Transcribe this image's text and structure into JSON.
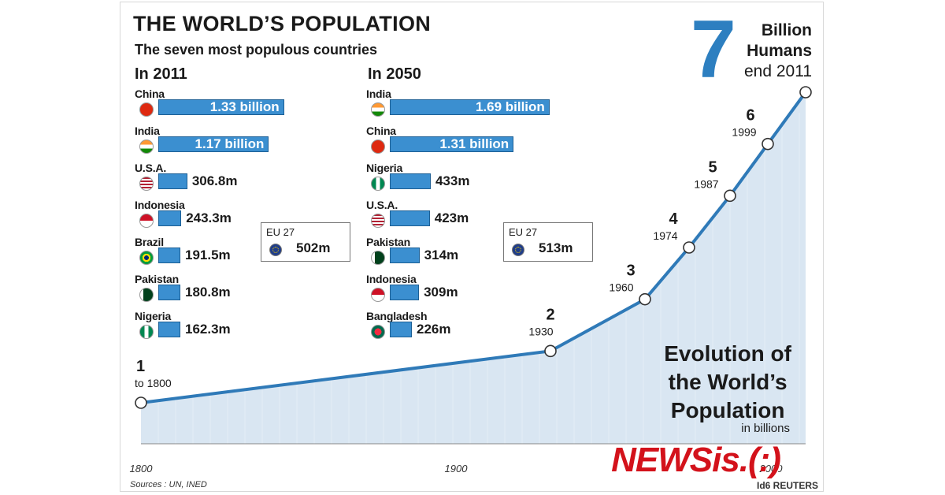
{
  "title": "THE WORLD’S POPULATION",
  "subtitle": "The seven most populous countries",
  "col2011": {
    "heading": "In 2011",
    "rows": [
      {
        "name": "China",
        "value_label": "1.33 billion",
        "value_m": 1330,
        "flag": "china-flag"
      },
      {
        "name": "India",
        "value_label": "1.17 billion",
        "value_m": 1170,
        "flag": "india-flag"
      },
      {
        "name": "U.S.A.",
        "value_label": "306.8m",
        "value_m": 306.8,
        "flag": "usa-flag"
      },
      {
        "name": "Indonesia",
        "value_label": "243.3m",
        "value_m": 243.3,
        "flag": "indonesia-flag"
      },
      {
        "name": "Brazil",
        "value_label": "191.5m",
        "value_m": 191.5,
        "flag": "brazil-flag"
      },
      {
        "name": "Pakistan",
        "value_label": "180.8m",
        "value_m": 180.8,
        "flag": "pakistan-flag"
      },
      {
        "name": "Nigeria",
        "value_label": "162.3m",
        "value_m": 162.3,
        "flag": "nigeria-flag"
      }
    ],
    "eu": {
      "label": "EU 27",
      "value": "502m"
    }
  },
  "col2050": {
    "heading": "In 2050",
    "rows": [
      {
        "name": "India",
        "value_label": "1.69 billion",
        "value_m": 1690,
        "flag": "india-flag"
      },
      {
        "name": "China",
        "value_label": "1.31 billion",
        "value_m": 1310,
        "flag": "china-flag"
      },
      {
        "name": "Nigeria",
        "value_label": "433m",
        "value_m": 433,
        "flag": "nigeria-flag"
      },
      {
        "name": "U.S.A.",
        "value_label": "423m",
        "value_m": 423,
        "flag": "usa-flag"
      },
      {
        "name": "Pakistan",
        "value_label": "314m",
        "value_m": 314,
        "flag": "pakistan-flag"
      },
      {
        "name": "Indonesia",
        "value_label": "309m",
        "value_m": 309,
        "flag": "indonesia-flag"
      },
      {
        "name": "Bangladesh",
        "value_label": "226m",
        "value_m": 226,
        "flag": "bangladesh-flag"
      }
    ],
    "eu": {
      "label": "EU 27",
      "value": "513m"
    }
  },
  "seven": {
    "number": "7",
    "line1": "Billion",
    "line2": "Humans",
    "line3": "end 2011"
  },
  "evolution": {
    "line1": "Evolution of",
    "line2": "the World’s",
    "line3": "Population",
    "unit": "in billions"
  },
  "sources": "Sources : UN, INED",
  "watermark": "NEWSis.(:)",
  "credit": "Id6 REUTERS",
  "colors": {
    "bar": "#3b8fd0",
    "line": "#2f7ab8",
    "area": "#d9e6f2",
    "accent": "#2d7fc0",
    "watermark": "#d3121b"
  },
  "chart_data": {
    "type": "area",
    "title": "Evolution of the World’s Population",
    "ylabel": "in billions",
    "x_ticks": [
      "1800",
      "1900",
      "2000"
    ],
    "xlim": [
      1800,
      2011
    ],
    "ylim": [
      1,
      7
    ],
    "points": [
      {
        "x": 1800,
        "y": 1,
        "num": "1",
        "label": "to 1800"
      },
      {
        "x": 1930,
        "y": 2,
        "num": "2",
        "label": "1930"
      },
      {
        "x": 1960,
        "y": 3,
        "num": "3",
        "label": "1960"
      },
      {
        "x": 1974,
        "y": 4,
        "num": "4",
        "label": "1974"
      },
      {
        "x": 1987,
        "y": 5,
        "num": "5",
        "label": "1987"
      },
      {
        "x": 1999,
        "y": 6,
        "num": "6",
        "label": "1999"
      },
      {
        "x": 2011,
        "y": 7,
        "num": "",
        "label": ""
      }
    ]
  }
}
